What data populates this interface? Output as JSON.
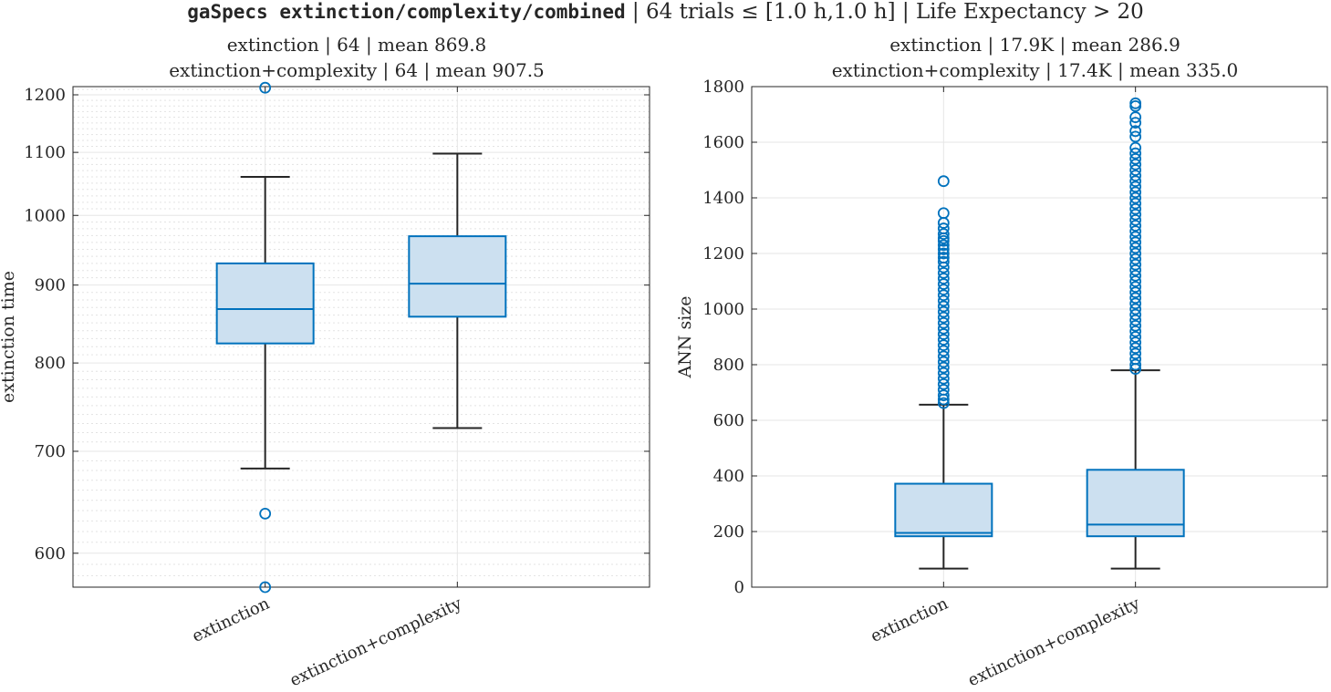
{
  "figure": {
    "suptitle_code": "gaSpecs extinction/complexity/combined",
    "suptitle_rest": " | 64 trials ≤ [1.0 h,1.0 h] | Life Expectancy > 20"
  },
  "colors": {
    "box_edge": "#0072BD",
    "box_fill": "#CCE0F0",
    "whisker": "#262626",
    "grid": "#e6e6e6"
  },
  "chart_data": [
    {
      "type": "box",
      "title_lines": [
        "extinction | 64 | mean 869.8",
        "extinction+complexity | 64 | mean 907.5"
      ],
      "xlabel": "",
      "ylabel": "extinction time",
      "yscale": "log",
      "ylim": [
        570,
        1215
      ],
      "yticks": [
        600,
        700,
        800,
        900,
        1000,
        1100,
        1200
      ],
      "ytick_labels": [
        "600",
        "700",
        "800",
        "900",
        "1000",
        "1100",
        "1200"
      ],
      "grid": true,
      "minor_grid": true,
      "categories": [
        "extinction",
        "extinction+complexity"
      ],
      "boxes": [
        {
          "whisker_low": 682,
          "q1": 824,
          "median": 868,
          "q3": 930,
          "whisker_high": 1060,
          "outliers": [
            1213,
            637,
            570
          ]
        },
        {
          "whisker_low": 725,
          "q1": 858,
          "median": 902,
          "q3": 969,
          "whisker_high": 1098,
          "outliers": []
        }
      ]
    },
    {
      "type": "box",
      "title_lines": [
        "extinction | 17.9K | mean 286.9",
        "extinction+complexity | 17.4K | mean 335.0"
      ],
      "xlabel": "",
      "ylabel": "ANN size",
      "yscale": "linear",
      "ylim": [
        0,
        1800
      ],
      "yticks": [
        0,
        200,
        400,
        600,
        800,
        1000,
        1200,
        1400,
        1600,
        1800
      ],
      "ytick_labels": [
        "0",
        "200",
        "400",
        "600",
        "800",
        "1000",
        "1200",
        "1400",
        "1600",
        "1800"
      ],
      "grid": true,
      "minor_grid": false,
      "categories": [
        "extinction",
        "extinction+complexity"
      ],
      "boxes": [
        {
          "whisker_low": 67,
          "q1": 183,
          "median": 195,
          "q3": 372,
          "whisker_high": 656,
          "outliers": [
            1460,
            1345,
            1310,
            1290,
            1270,
            1255,
            1245,
            1230,
            1215,
            1200,
            1185,
            1170,
            1150,
            1130,
            1110,
            1090,
            1070,
            1050,
            1030,
            1010,
            990,
            970,
            950,
            930,
            910,
            890,
            870,
            850,
            830,
            810,
            790,
            770,
            750,
            730,
            710,
            690,
            675,
            662
          ]
        },
        {
          "whisker_low": 67,
          "q1": 183,
          "median": 225,
          "q3": 422,
          "whisker_high": 780,
          "outliers": [
            1740,
            1730,
            1690,
            1670,
            1640,
            1620,
            1580,
            1560,
            1540,
            1520,
            1500,
            1480,
            1460,
            1440,
            1420,
            1400,
            1380,
            1360,
            1340,
            1320,
            1300,
            1280,
            1260,
            1240,
            1220,
            1200,
            1180,
            1160,
            1140,
            1120,
            1100,
            1080,
            1060,
            1040,
            1020,
            1000,
            980,
            960,
            940,
            920,
            900,
            880,
            860,
            840,
            820,
            800,
            785
          ]
        }
      ]
    }
  ]
}
